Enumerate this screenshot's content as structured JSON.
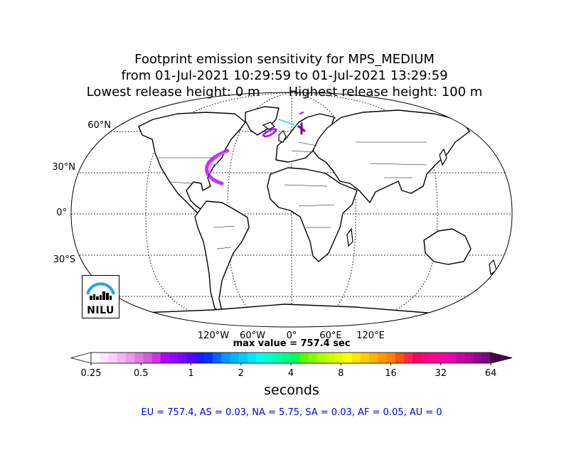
{
  "title": {
    "line1": "Footprint emission sensitivity for MPS_MEDIUM",
    "line2": "from 01-Jul-2021 10:29:59 to 01-Jul-2021 13:29:59",
    "line3": "Lowest release height: 0 m       Highest release height: 100 m"
  },
  "map": {
    "lat_labels": [
      "60°N",
      "30°N",
      "0°",
      "30°S"
    ],
    "lon_labels": [
      "120°W",
      "60°W",
      "0°",
      "60°E",
      "120°E"
    ],
    "land_color": "#ffffff",
    "coast_color": "#000000"
  },
  "logo": {
    "text": "NILU",
    "arc_color": "#1da6e3"
  },
  "max_value": "max value = 757.4 sec",
  "colorbar": {
    "ticks": [
      "0.25",
      "0.5",
      "1",
      "2",
      "4",
      "8",
      "16",
      "32",
      "64"
    ],
    "label": "seconds",
    "colors": [
      "#ffffff",
      "#ffe6ff",
      "#ffccff",
      "#f5b3f5",
      "#eb99eb",
      "#e07ae0",
      "#d65cd6",
      "#cc33e6",
      "#b300ff",
      "#9900ff",
      "#7f00ff",
      "#5a00ff",
      "#1a1aff",
      "#0033ff",
      "#0066ff",
      "#0099ff",
      "#00b3ff",
      "#00ccff",
      "#00e6ff",
      "#00ffee",
      "#00ffcc",
      "#00ffaa",
      "#00ff80",
      "#00ff55",
      "#55ff00",
      "#80ff00",
      "#aaff00",
      "#ccff00",
      "#e6ff00",
      "#ffff00",
      "#ffe600",
      "#ffcc00",
      "#ffb300",
      "#ff9900",
      "#ff8000",
      "#ff5500",
      "#ff2a4d",
      "#ff0066",
      "#ff0080",
      "#ff0099",
      "#f500a8",
      "#e600b3",
      "#cc00a8",
      "#b3009c",
      "#99008f",
      "#800080"
    ]
  },
  "stats": "EU = 757.4,  AS = 0.03,  NA = 5.75,  SA = 0.03,  AF = 0.05,  AU = 0"
}
